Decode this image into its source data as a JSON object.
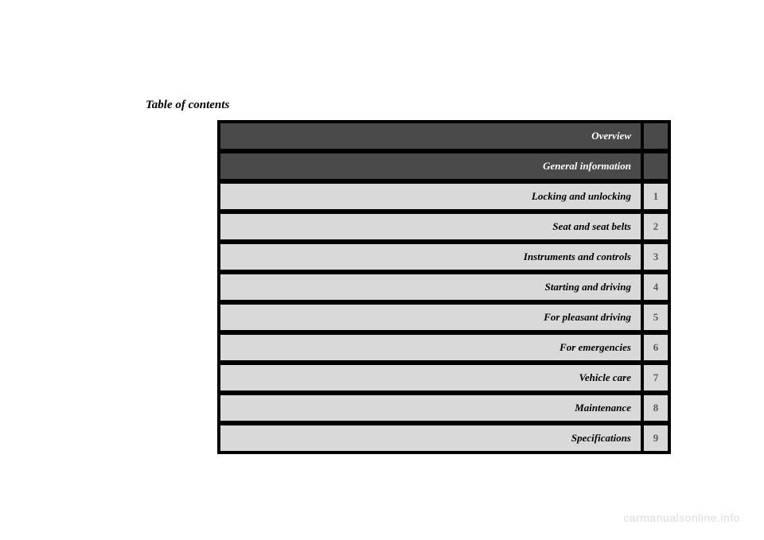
{
  "title": "Table of contents",
  "watermark": "carmanualsonline.info",
  "colors": {
    "dark_bg": "#4a4a4a",
    "light_bg": "#d9d9d9",
    "black": "#000000",
    "white": "#ffffff",
    "number_color": "#5a5a5a",
    "watermark_color": "#dcdcdc"
  },
  "rows": [
    {
      "label": "Overview",
      "number": "",
      "style": "dark"
    },
    {
      "label": "General information",
      "number": "",
      "style": "dark"
    },
    {
      "label": "Locking and unlocking",
      "number": "1",
      "style": "light"
    },
    {
      "label": "Seat and seat belts",
      "number": "2",
      "style": "light"
    },
    {
      "label": "Instruments and controls",
      "number": "3",
      "style": "light"
    },
    {
      "label": "Starting and driving",
      "number": "4",
      "style": "light"
    },
    {
      "label": "For pleasant driving",
      "number": "5",
      "style": "light"
    },
    {
      "label": "For emergencies",
      "number": "6",
      "style": "light"
    },
    {
      "label": "Vehicle care",
      "number": "7",
      "style": "light"
    },
    {
      "label": "Maintenance",
      "number": "8",
      "style": "light"
    },
    {
      "label": "Specifications",
      "number": "9",
      "style": "light"
    }
  ]
}
